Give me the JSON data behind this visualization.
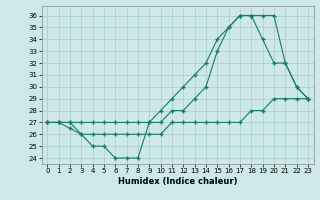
{
  "title": "",
  "xlabel": "Humidex (Indice chaleur)",
  "bg_color": "#cce8e8",
  "line_color": "#1a7a6e",
  "grid_color": "#aacccc",
  "xlim": [
    -0.5,
    23.5
  ],
  "ylim": [
    23.5,
    36.8
  ],
  "yticks": [
    24,
    25,
    26,
    27,
    28,
    29,
    30,
    31,
    32,
    33,
    34,
    35,
    36
  ],
  "xticks": [
    0,
    1,
    2,
    3,
    4,
    5,
    6,
    7,
    8,
    9,
    10,
    11,
    12,
    13,
    14,
    15,
    16,
    17,
    18,
    19,
    20,
    21,
    22,
    23
  ],
  "line1_x": [
    0,
    1,
    2,
    3,
    4,
    5,
    6,
    7,
    8,
    9,
    10,
    11,
    12,
    13,
    14,
    15,
    16,
    17,
    18,
    19,
    20,
    21,
    22,
    23
  ],
  "line1_y": [
    27,
    27,
    27,
    26,
    25,
    25,
    24,
    24,
    24,
    27,
    27,
    28,
    28,
    29,
    30,
    33,
    35,
    36,
    36,
    36,
    36,
    32,
    30,
    29
  ],
  "line2_x": [
    0,
    1,
    2,
    3,
    4,
    5,
    6,
    7,
    8,
    9,
    10,
    11,
    12,
    13,
    14,
    15,
    16,
    17,
    18,
    19,
    20,
    21,
    22,
    23
  ],
  "line2_y": [
    27,
    27,
    26.5,
    26,
    26,
    26,
    26,
    26,
    26,
    26,
    26,
    27,
    27,
    27,
    27,
    27,
    27,
    27,
    28,
    28,
    29,
    29,
    29,
    29
  ],
  "line3_x": [
    0,
    1,
    2,
    3,
    4,
    5,
    6,
    7,
    8,
    9,
    10,
    11,
    12,
    13,
    14,
    15,
    16,
    17,
    18,
    19,
    20,
    21,
    22,
    23
  ],
  "line3_y": [
    27,
    27,
    27,
    27,
    27,
    27,
    27,
    27,
    27,
    27,
    28,
    29,
    30,
    31,
    32,
    34,
    35,
    36,
    36,
    34,
    32,
    32,
    30,
    29
  ]
}
